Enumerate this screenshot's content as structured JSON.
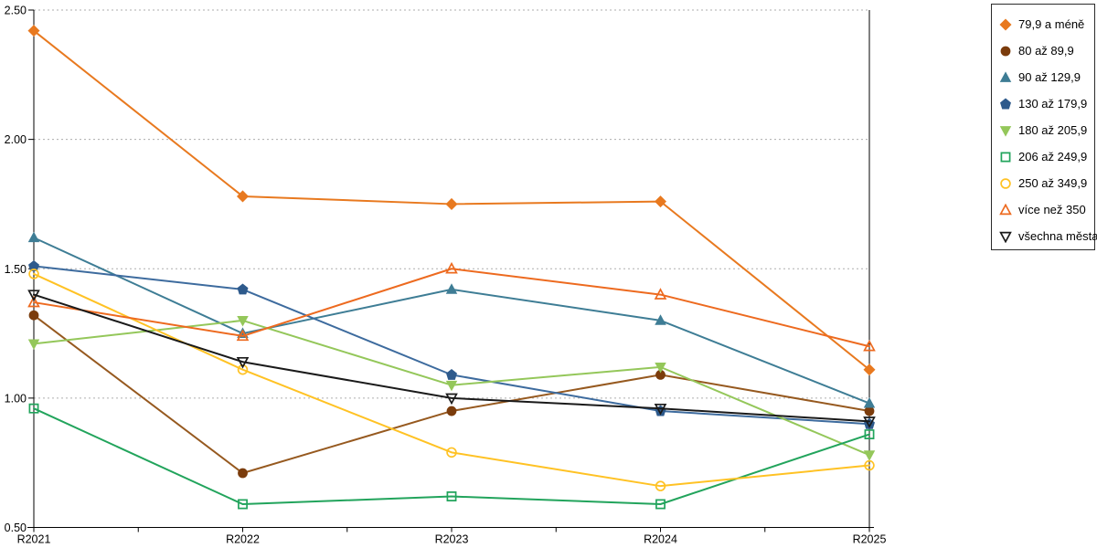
{
  "chart_data": {
    "type": "line",
    "title": "",
    "xlabel": "",
    "ylabel": "",
    "x": [
      "R2021",
      "R2022",
      "R2023",
      "R2024",
      "R2025"
    ],
    "ylim": [
      0.5,
      2.5
    ],
    "yticks": [
      {
        "value": 2.5,
        "label": "2.50"
      },
      {
        "value": 2.0,
        "label": "2.00"
      },
      {
        "value": 1.5,
        "label": "1.50"
      },
      {
        "value": 1.0,
        "label": "1.00"
      },
      {
        "value": 0.5,
        "label": "0.50"
      }
    ],
    "grid": "dotted-horizontal",
    "grid_color": "#adadad",
    "axis_color": "#000000",
    "legend_position": "top-right",
    "legend_border_color": "#2b2b2b",
    "series": [
      {
        "name": "79,9 a méně",
        "marker": "diamond",
        "fill": "solid",
        "color": "#e8791f",
        "values": [
          2.42,
          1.78,
          1.75,
          1.76,
          1.11
        ]
      },
      {
        "name": "80 až 89,9",
        "marker": "circle",
        "fill": "solid",
        "color": "#7b3c0c",
        "line_color": "#96591f",
        "values": [
          1.32,
          0.71,
          0.95,
          1.09,
          0.95
        ]
      },
      {
        "name": "90 až 129,9",
        "marker": "triangle-up",
        "fill": "solid",
        "color": "#3e7d95",
        "values": [
          1.62,
          1.25,
          1.42,
          1.3,
          0.98
        ]
      },
      {
        "name": "130 až 179,9",
        "marker": "pentagon",
        "fill": "solid",
        "color": "#2e5a8c",
        "line_color": "#3d6b9e",
        "values": [
          1.51,
          1.42,
          1.09,
          0.95,
          0.9
        ]
      },
      {
        "name": "180 až 205,9",
        "marker": "triangle-down",
        "fill": "solid",
        "color": "#94c75a",
        "values": [
          1.21,
          1.3,
          1.05,
          1.12,
          0.78
        ]
      },
      {
        "name": "206 až 249,9",
        "marker": "square",
        "fill": "hollow",
        "color": "#22a45c",
        "values": [
          0.96,
          0.59,
          0.62,
          0.59,
          0.86
        ]
      },
      {
        "name": "250 až 349,9",
        "marker": "circle",
        "fill": "hollow",
        "color": "#ffc224",
        "values": [
          1.48,
          1.11,
          0.79,
          0.66,
          0.74
        ]
      },
      {
        "name": "více než 350",
        "marker": "triangle-up",
        "fill": "hollow",
        "color": "#ed6a1f",
        "values": [
          1.37,
          1.24,
          1.5,
          1.4,
          1.2
        ]
      },
      {
        "name": "všechna města",
        "marker": "triangle-down",
        "fill": "hollow",
        "color": "#1a1a1a",
        "values": [
          1.4,
          1.14,
          1.0,
          0.96,
          0.91
        ]
      }
    ]
  }
}
